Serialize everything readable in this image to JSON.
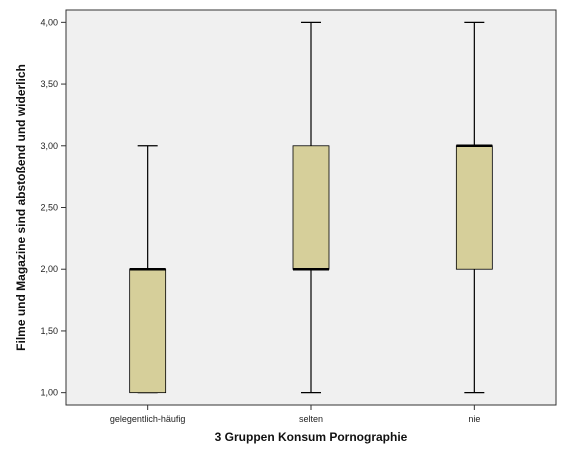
{
  "chart_data": {
    "type": "boxplot",
    "xlabel": "3 Gruppen Konsum Pornographie",
    "ylabel": "Filme und Magazine sind abstoßend und widerlich",
    "ylim": [
      0.9,
      4.1
    ],
    "yticks": [
      1.0,
      1.5,
      2.0,
      2.5,
      3.0,
      3.5,
      4.0
    ],
    "ytick_labels": [
      "1,00",
      "1,50",
      "2,00",
      "2,50",
      "3,00",
      "3,50",
      "4,00"
    ],
    "categories": [
      "gelegentlich-häufig",
      "selten",
      "nie"
    ],
    "boxes": [
      {
        "category": "gelegentlich-häufig",
        "whisker_low": 1.0,
        "q1": 1.0,
        "median": 2.0,
        "q3": 2.0,
        "whisker_high": 3.0
      },
      {
        "category": "selten",
        "whisker_low": 1.0,
        "q1": 2.0,
        "median": 2.0,
        "q3": 3.0,
        "whisker_high": 4.0
      },
      {
        "category": "nie",
        "whisker_low": 1.0,
        "q1": 2.0,
        "median": 3.0,
        "q3": 3.0,
        "whisker_high": 4.0
      }
    ],
    "grid": false,
    "legend": "none"
  },
  "colors": {
    "plot_background": "#f0f0f0",
    "box_fill": "#d6cf9a",
    "line": "#000000",
    "frame": "#333333"
  }
}
